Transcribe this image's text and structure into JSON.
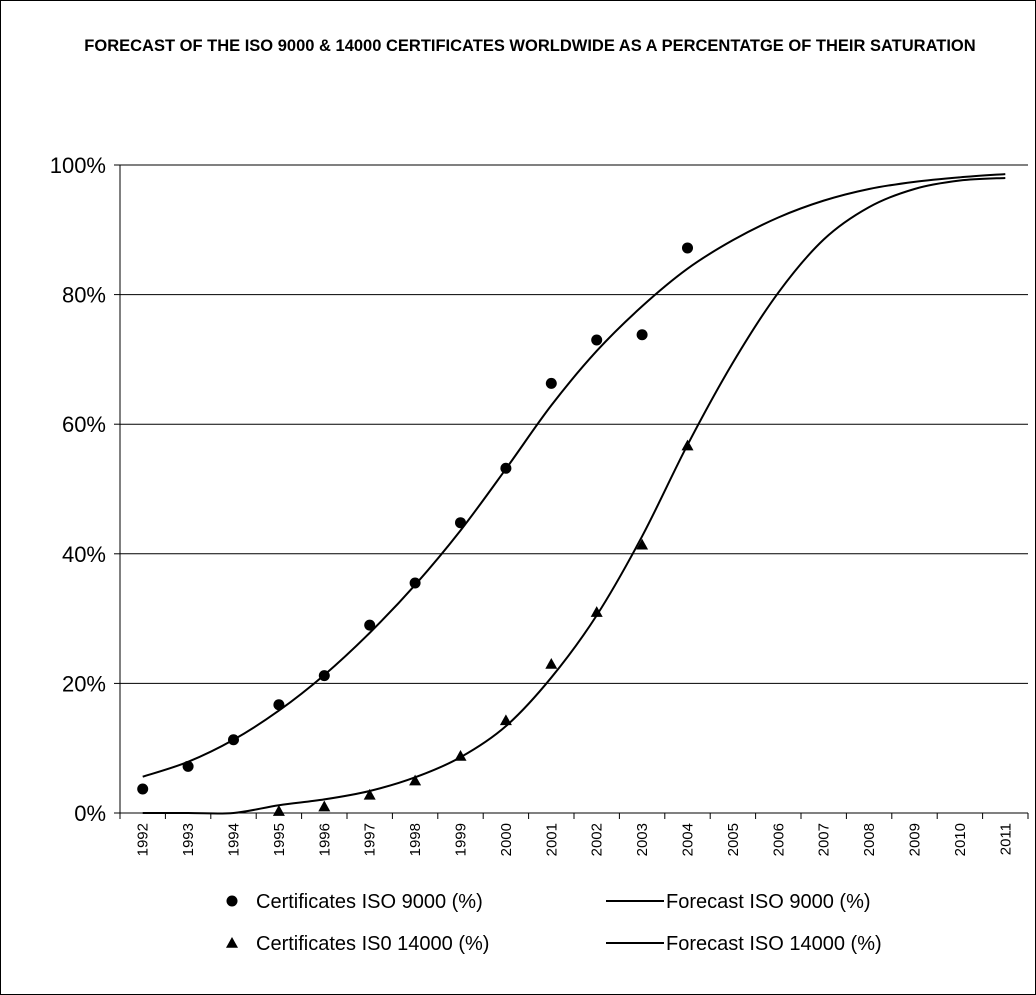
{
  "chart_data": {
    "type": "line",
    "title": "FORECAST OF THE ISO 9000 & 14000 CERTIFICATES WORLDWIDE AS A PERCENTATGE OF THEIR SATURATION",
    "x": [
      1992,
      1993,
      1994,
      1995,
      1996,
      1997,
      1998,
      1999,
      2000,
      2001,
      2002,
      2003,
      2004,
      2005,
      2006,
      2007,
      2008,
      2009,
      2010,
      2011
    ],
    "x_tick_labels": [
      "1992",
      "1993",
      "1994",
      "1995",
      "1996",
      "1997",
      "1998",
      "1999",
      "2000",
      "2001",
      "2002",
      "2003",
      "2004",
      "2005",
      "2006",
      "2007",
      "2008",
      "2009",
      "2010",
      "2011"
    ],
    "y_tick_labels": [
      "0%",
      "20%",
      "40%",
      "60%",
      "80%",
      "100%"
    ],
    "ylim": [
      0,
      100
    ],
    "grid": "horizontal",
    "legend_position": "bottom",
    "series": [
      {
        "name": "Certificates ISO 9000 (%)",
        "style": "markers",
        "marker": "circle",
        "x": [
          1992,
          1993,
          1994,
          1995,
          1996,
          1997,
          1998,
          1999,
          2000,
          2001,
          2002,
          2003,
          2004
        ],
        "values": [
          3.7,
          7.2,
          11.3,
          16.7,
          21.2,
          29.0,
          35.5,
          44.8,
          53.2,
          66.3,
          73.0,
          73.8,
          87.2
        ]
      },
      {
        "name": "Forecast ISO 9000 (%)",
        "style": "line",
        "values": [
          5.6,
          7.9,
          11.3,
          15.8,
          21.3,
          27.8,
          35.2,
          43.6,
          53.1,
          62.9,
          71.3,
          78.2,
          84.0,
          88.4,
          91.9,
          94.5,
          96.3,
          97.4,
          98.1,
          98.6
        ]
      },
      {
        "name": "Certificates IS0 14000 (%)",
        "style": "markers",
        "marker": "triangle",
        "x": [
          1995,
          1996,
          1997,
          1998,
          1999,
          2000,
          2001,
          2002,
          2003,
          2004
        ],
        "values": [
          0.3,
          1.0,
          2.8,
          5.0,
          8.8,
          14.3,
          23.0,
          31.0,
          41.4,
          56.7
        ]
      },
      {
        "name": "Forecast ISO 14000 (%)",
        "style": "line",
        "values": [
          0.0,
          0.0,
          0.0,
          1.2,
          2.1,
          3.4,
          5.5,
          8.6,
          13.4,
          20.9,
          30.5,
          42.7,
          56.8,
          69.5,
          80.3,
          88.5,
          93.5,
          96.3,
          97.6,
          98.0
        ]
      }
    ]
  }
}
